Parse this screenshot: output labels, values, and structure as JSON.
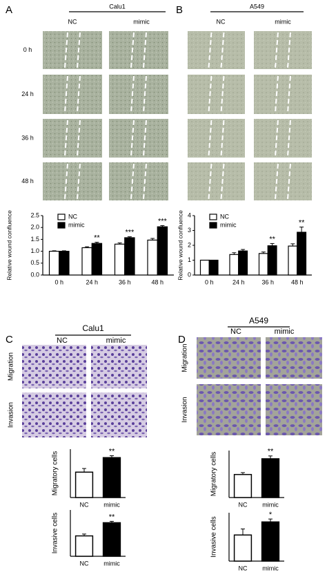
{
  "panels": [
    {
      "letter": "A",
      "cell_line": "Calu1",
      "columns": [
        "NC",
        "mimic"
      ],
      "rows": [
        "0 h",
        "24 h",
        "36 h",
        "48 h"
      ]
    },
    {
      "letter": "B",
      "cell_line": "A549",
      "columns": [
        "NC",
        "mimic"
      ],
      "rows": [
        "0 h",
        "24 h",
        "36 h",
        "48 h"
      ]
    },
    {
      "letter": "C",
      "cell_line": "Calu1",
      "columns": [
        "NC",
        "mimic"
      ],
      "rows": [
        "Migration",
        "Invasion"
      ]
    },
    {
      "letter": "D",
      "cell_line": "A549",
      "columns": [
        "NC",
        "mimic"
      ],
      "rows": [
        "Migration",
        "Invasion"
      ]
    }
  ],
  "chart_data": [
    {
      "type": "bar",
      "ylabel": "Relative wound confluence",
      "categories": [
        "0 h",
        "24 h",
        "36 h",
        "48 h"
      ],
      "series": [
        {
          "name": "NC",
          "color": "#ffffff",
          "values": [
            1.0,
            1.15,
            1.3,
            1.47
          ],
          "errors": [
            0.02,
            0.04,
            0.05,
            0.07
          ],
          "significance": [
            null,
            null,
            null,
            null
          ]
        },
        {
          "name": "mimic",
          "color": "#000000",
          "values": [
            1.0,
            1.33,
            1.57,
            2.03
          ],
          "errors": [
            0.02,
            0.05,
            0.04,
            0.05
          ],
          "significance": [
            null,
            "**",
            "***",
            "***"
          ]
        }
      ],
      "ylim": [
        0,
        2.5
      ],
      "yticks": [
        {
          "value": 0,
          "label": "0.0"
        },
        0.5,
        {
          "value": 1,
          "label": "1.0"
        },
        1.5,
        {
          "value": 2,
          "label": "2.0"
        },
        2.5
      ],
      "legend": "upper left"
    },
    {
      "type": "bar",
      "ylabel": "Relative wound confluence",
      "categories": [
        "0 h",
        "24 h",
        "36 h",
        "48 h"
      ],
      "series": [
        {
          "name": "NC",
          "color": "#ffffff",
          "values": [
            1.0,
            1.38,
            1.45,
            1.95
          ],
          "errors": [
            0.0,
            0.12,
            0.1,
            0.15
          ],
          "significance": [
            null,
            null,
            null,
            null
          ]
        },
        {
          "name": "mimic",
          "color": "#000000",
          "values": [
            1.0,
            1.62,
            1.97,
            2.88
          ],
          "errors": [
            0.0,
            0.1,
            0.15,
            0.35
          ],
          "significance": [
            null,
            null,
            "**",
            "**"
          ]
        }
      ],
      "ylim": [
        0,
        4
      ],
      "yticks": [
        0,
        1,
        2,
        3,
        4
      ],
      "legend": "upper left"
    },
    {
      "type": "bar",
      "ylabel": "Migratory cells",
      "categories": [
        "NC",
        "mimic"
      ],
      "colors": [
        "#ffffff",
        "#000000"
      ],
      "values": [
        105,
        165
      ],
      "errors": [
        15,
        8
      ],
      "significance": [
        null,
        "**"
      ],
      "ylim": [
        0,
        200
      ]
    },
    {
      "type": "bar",
      "ylabel": "Invasive cells",
      "categories": [
        "NC",
        "mimic"
      ],
      "colors": [
        "#ffffff",
        "#000000"
      ],
      "values": [
        88,
        145
      ],
      "errors": [
        8,
        6
      ],
      "significance": [
        null,
        "**"
      ],
      "ylim": [
        0,
        200
      ]
    },
    {
      "type": "bar",
      "ylabel": "Migratory cells",
      "categories": [
        "NC",
        "mimic"
      ],
      "colors": [
        "#ffffff",
        "#000000"
      ],
      "values": [
        98,
        165
      ],
      "errors": [
        8,
        12
      ],
      "significance": [
        null,
        "**"
      ],
      "ylim": [
        0,
        200
      ]
    },
    {
      "type": "bar",
      "ylabel": "Invasive cells",
      "categories": [
        "NC",
        "mimic"
      ],
      "colors": [
        "#ffffff",
        "#000000"
      ],
      "values": [
        108,
        162
      ],
      "errors": [
        25,
        12
      ],
      "significance": [
        null,
        "*"
      ],
      "ylim": [
        0,
        200
      ]
    }
  ]
}
